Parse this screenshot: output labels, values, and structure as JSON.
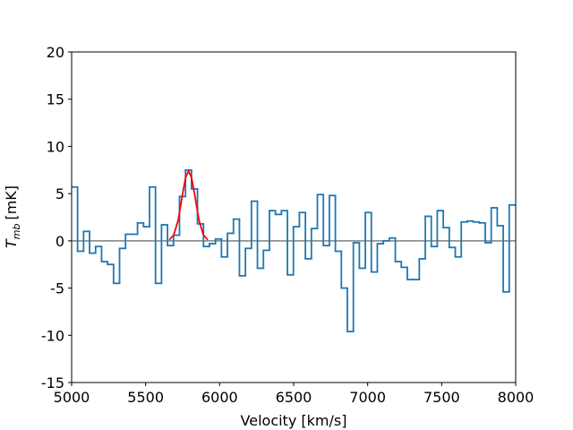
{
  "chart_data": {
    "type": "step",
    "xlabel": "Velocity [km/s]",
    "ylabel": {
      "symbol": "T",
      "subscript": "mb",
      "unit": "[mK]"
    },
    "xlim": [
      5000,
      8000
    ],
    "ylim": [
      -15,
      20
    ],
    "xticks": [
      5000,
      5500,
      6000,
      6500,
      7000,
      7500,
      8000
    ],
    "yticks": [
      -15,
      -10,
      -5,
      0,
      5,
      10,
      15,
      20
    ],
    "series": [
      {
        "color": "#1f77b4",
        "style": "steps-mid",
        "x": [
          5020,
          5060.5,
          5101,
          5141.5,
          5182,
          5222.5,
          5263,
          5303.5,
          5344,
          5384.5,
          5425,
          5465.5,
          5506,
          5546.5,
          5587,
          5627.5,
          5668,
          5708.5,
          5749,
          5789.5,
          5830,
          5870.5,
          5911,
          5951.5,
          5992,
          6032.5,
          6073,
          6113.5,
          6154,
          6194.5,
          6235,
          6275.5,
          6316,
          6356.5,
          6397,
          6437.5,
          6478,
          6518.5,
          6559,
          6599.5,
          6640,
          6680.5,
          6721,
          6761.5,
          6802,
          6842.5,
          6883,
          6923.5,
          6964,
          7004.5,
          7045,
          7085.5,
          7126,
          7166.5,
          7207,
          7247.5,
          7288,
          7328.5,
          7369,
          7409.5,
          7450,
          7490.5,
          7531,
          7571.5,
          7612,
          7652.5,
          7693,
          7733.5,
          7774,
          7814.5,
          7855,
          7895.5,
          7936,
          7976.5
        ],
        "values": [
          5.7,
          -1.1,
          1.0,
          -1.3,
          -0.6,
          -2.2,
          -2.5,
          -4.5,
          -0.8,
          0.7,
          0.7,
          1.9,
          1.5,
          5.7,
          -4.5,
          1.7,
          -0.5,
          0.6,
          4.7,
          7.5,
          5.5,
          1.8,
          -0.6,
          -0.3,
          0.2,
          -1.7,
          0.8,
          2.3,
          -3.7,
          -0.8,
          4.2,
          -2.9,
          -1.0,
          3.2,
          2.8,
          3.2,
          -3.6,
          1.5,
          3.0,
          -1.9,
          1.3,
          4.9,
          -0.5,
          4.8,
          -1.1,
          -5.0,
          -9.6,
          -0.2,
          -2.9,
          3.0,
          -3.3,
          -0.3,
          0.0,
          0.3,
          -2.2,
          -2.8,
          -4.1,
          -4.1,
          -1.9,
          2.6,
          -0.6,
          3.2,
          1.4,
          -0.7,
          -1.7,
          2.0,
          2.1,
          2.0,
          1.9,
          -0.2,
          3.5,
          1.6,
          -5.4,
          3.8
        ]
      },
      {
        "color": "red",
        "style": "line",
        "x": [
          5660,
          5690,
          5720,
          5750,
          5770,
          5790,
          5810,
          5830,
          5860,
          5890,
          5920
        ],
        "values": [
          0.11,
          0.63,
          2.2,
          5.0,
          6.7,
          7.4,
          6.7,
          5.0,
          2.2,
          0.63,
          0.11
        ]
      }
    ],
    "hlines": [
      {
        "value": 0,
        "color": "#808080"
      }
    ]
  }
}
